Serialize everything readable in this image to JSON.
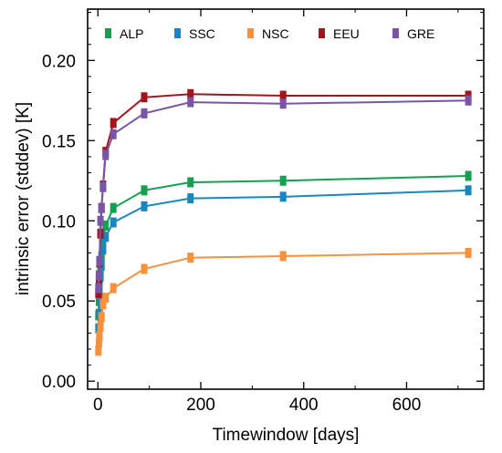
{
  "chart_data": {
    "type": "line",
    "xlabel": "Timewindow [days]",
    "ylabel": "intrinsic error (stddev) [K]",
    "xlim": [
      -20,
      750
    ],
    "ylim": [
      -0.005,
      0.232
    ],
    "xticks": [
      0,
      200,
      400,
      600
    ],
    "xtick_labels": [
      "0",
      "200",
      "400",
      "600"
    ],
    "yticks": [
      0.0,
      0.05,
      0.1,
      0.15,
      0.2
    ],
    "ytick_labels": [
      "0.00",
      "0.05",
      "0.10",
      "0.15",
      "0.20"
    ],
    "grid": false,
    "legend_placement": "top, horizontal inside plot",
    "x": [
      1,
      2,
      3,
      5,
      7,
      10,
      15,
      30,
      90,
      180,
      360,
      720
    ],
    "series": [
      {
        "name": "ALP",
        "color": "#14a050",
        "values": [
          0.041,
          0.05,
          0.06,
          0.07,
          0.078,
          0.087,
          0.097,
          0.108,
          0.119,
          0.124,
          0.125,
          0.128
        ]
      },
      {
        "name": "SSC",
        "color": "#1a86c0",
        "values": [
          0.033,
          0.042,
          0.055,
          0.065,
          0.072,
          0.082,
          0.09,
          0.099,
          0.109,
          0.114,
          0.115,
          0.119
        ]
      },
      {
        "name": "NSC",
        "color": "#f7913d",
        "values": [
          0.019,
          0.024,
          0.028,
          0.034,
          0.04,
          0.048,
          0.052,
          0.058,
          0.07,
          0.077,
          0.078,
          0.08
        ]
      },
      {
        "name": "EEU",
        "color": "#a3141c",
        "values": [
          0.055,
          0.063,
          0.074,
          0.092,
          0.108,
          0.122,
          0.143,
          0.161,
          0.177,
          0.179,
          0.178,
          0.178
        ]
      },
      {
        "name": "GRE",
        "color": "#7a55a6",
        "values": [
          0.058,
          0.066,
          0.075,
          0.1,
          0.108,
          0.121,
          0.141,
          0.154,
          0.167,
          0.174,
          0.173,
          0.175
        ]
      }
    ]
  }
}
